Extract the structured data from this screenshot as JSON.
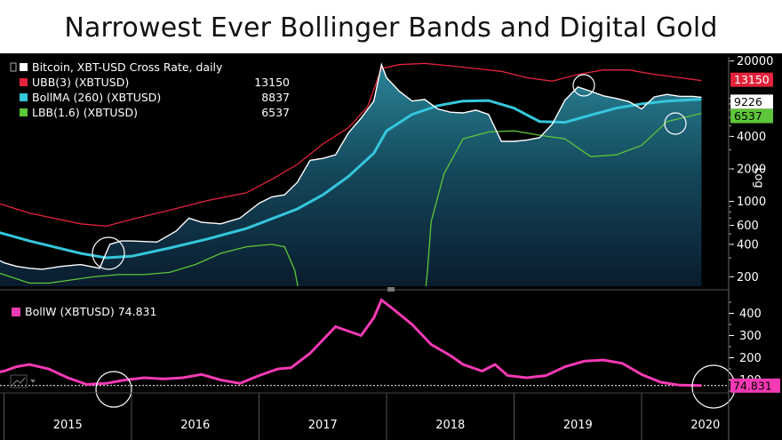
{
  "title": "Narrowest Ever Bollinger Bands and Digital Gold",
  "colors": {
    "price": "#ffffff",
    "ubb": "#e2233b",
    "bollma": "#35c6dc",
    "lbb": "#5dc539",
    "bollw": "#f43ab4"
  },
  "chart_data": [
    {
      "type": "line",
      "scale": "log",
      "ylim": [
        170,
        21000
      ],
      "yticks": [
        200,
        400,
        600,
        1000,
        2000,
        4000,
        20000
      ],
      "axis_label": "Log",
      "legend": [
        {
          "label": "Bitcoin, XBT-USD Cross Rate, daily",
          "value": "",
          "color": "#ffffff"
        },
        {
          "label": "UBB(3) (XBTUSD)",
          "value": "13150",
          "color": "#e2233b"
        },
        {
          "label": "BollMA (260) (XBTUSD)",
          "value": "8837",
          "color": "#35c6dc"
        },
        {
          "label": "LBB(1.6) (XBTUSD)",
          "value": "6537",
          "color": "#5dc539"
        }
      ],
      "last_values": {
        "ubb": "13150",
        "price": "9226",
        "lbb": "6537"
      },
      "series": [
        {
          "name": "Bitcoin, XBT-USD Cross Rate, daily",
          "x": [
            2014.85,
            2015.0,
            2015.1,
            2015.2,
            2015.3,
            2015.45,
            2015.6,
            2015.75,
            2015.83,
            2015.92,
            2016.0,
            2016.2,
            2016.35,
            2016.45,
            2016.55,
            2016.7,
            2016.85,
            2017.0,
            2017.1,
            2017.2,
            2017.3,
            2017.4,
            2017.5,
            2017.6,
            2017.7,
            2017.8,
            2017.9,
            2017.96,
            2018.0,
            2018.1,
            2018.2,
            2018.3,
            2018.4,
            2018.5,
            2018.6,
            2018.7,
            2018.8,
            2018.9,
            2019.0,
            2019.1,
            2019.2,
            2019.3,
            2019.4,
            2019.5,
            2019.6,
            2019.7,
            2019.8,
            2019.9,
            2020.0,
            2020.1,
            2020.2,
            2020.3,
            2020.4,
            2020.47
          ],
          "values": [
            330,
            270,
            250,
            240,
            235,
            250,
            260,
            240,
            400,
            430,
            430,
            420,
            530,
            700,
            640,
            620,
            700,
            960,
            1100,
            1150,
            1500,
            2400,
            2500,
            2700,
            4300,
            5900,
            8500,
            18500,
            14000,
            10500,
            8500,
            8800,
            7200,
            6700,
            6600,
            7000,
            6400,
            3600,
            3600,
            3700,
            3900,
            5200,
            8700,
            11500,
            10500,
            9500,
            9000,
            8400,
            7200,
            9300,
            9800,
            9400,
            9400,
            9226
          ]
        },
        {
          "name": "UBB(3) (XBTUSD)",
          "x": [
            2014.85,
            2015.2,
            2015.6,
            2015.8,
            2016.0,
            2016.3,
            2016.6,
            2016.9,
            2017.1,
            2017.3,
            2017.5,
            2017.7,
            2017.85,
            2017.96,
            2018.1,
            2018.3,
            2018.5,
            2018.7,
            2018.9,
            2019.1,
            2019.3,
            2019.5,
            2019.7,
            2019.9,
            2020.1,
            2020.3,
            2020.47
          ],
          "values": [
            1050,
            780,
            620,
            590,
            680,
            830,
            1020,
            1200,
            1600,
            2200,
            3400,
            4800,
            7500,
            17000,
            18500,
            19000,
            18000,
            17000,
            16000,
            14000,
            13000,
            15000,
            16500,
            16500,
            15000,
            14000,
            13150
          ]
        },
        {
          "name": "BollMA (260) (XBTUSD)",
          "x": [
            2014.85,
            2015.2,
            2015.6,
            2015.8,
            2016.0,
            2016.3,
            2016.6,
            2016.9,
            2017.1,
            2017.3,
            2017.5,
            2017.7,
            2017.9,
            2018.0,
            2018.2,
            2018.4,
            2018.6,
            2018.8,
            2019.0,
            2019.2,
            2019.4,
            2019.6,
            2019.8,
            2020.0,
            2020.2,
            2020.47
          ],
          "values": [
            560,
            430,
            330,
            300,
            310,
            370,
            450,
            560,
            690,
            850,
            1150,
            1700,
            2800,
            4500,
            6400,
            7700,
            8500,
            8600,
            7300,
            5500,
            5400,
            6300,
            7300,
            8000,
            8500,
            8837
          ]
        },
        {
          "name": "LBB(1.6) (XBTUSD)",
          "x": [
            2014.85,
            2015.05,
            2015.2,
            2015.35,
            2015.5,
            2015.7,
            2015.9,
            2016.1,
            2016.3,
            2016.5,
            2016.7,
            2016.9,
            2017.1,
            2017.2,
            2017.28,
            2017.32,
            2018.3,
            2018.32,
            2018.35,
            2018.45,
            2018.6,
            2018.8,
            2019.0,
            2019.2,
            2019.4,
            2019.6,
            2019.8,
            2020.0,
            2020.2,
            2020.47
          ],
          "values": [
            240,
            200,
            175,
            175,
            185,
            200,
            210,
            210,
            220,
            260,
            330,
            380,
            400,
            380,
            230,
            130,
            130,
            220,
            650,
            1800,
            3800,
            4400,
            4500,
            4100,
            3800,
            2600,
            2700,
            3300,
            5500,
            6537
          ]
        }
      ]
    },
    {
      "type": "line",
      "ylim": [
        50,
        490
      ],
      "yticks": [
        100,
        200,
        300,
        400
      ],
      "legend": [
        {
          "label": "BollW (XBTUSD) 74.831",
          "color": "#f43ab4"
        }
      ],
      "last_value": "74.831",
      "reference_value": 74.831,
      "x_tick_labels": [
        "2015",
        "2016",
        "2017",
        "2018",
        "2019",
        "2020"
      ],
      "series": [
        {
          "name": "BollW (XBTUSD)",
          "x": [
            2014.85,
            2015.0,
            2015.1,
            2015.2,
            2015.35,
            2015.5,
            2015.65,
            2015.8,
            2015.95,
            2016.1,
            2016.25,
            2016.4,
            2016.55,
            2016.7,
            2016.85,
            2017.0,
            2017.15,
            2017.25,
            2017.4,
            2017.6,
            2017.8,
            2017.9,
            2017.96,
            2018.05,
            2018.2,
            2018.35,
            2018.5,
            2018.6,
            2018.75,
            2018.85,
            2018.95,
            2019.1,
            2019.25,
            2019.4,
            2019.55,
            2019.7,
            2019.85,
            2020.0,
            2020.15,
            2020.3,
            2020.47
          ],
          "values": [
            125,
            140,
            160,
            170,
            150,
            110,
            80,
            85,
            100,
            110,
            105,
            110,
            125,
            100,
            85,
            120,
            150,
            155,
            220,
            340,
            300,
            380,
            460,
            420,
            350,
            260,
            210,
            170,
            140,
            170,
            120,
            110,
            120,
            160,
            185,
            190,
            175,
            125,
            90,
            77,
            74.8
          ]
        }
      ]
    }
  ]
}
